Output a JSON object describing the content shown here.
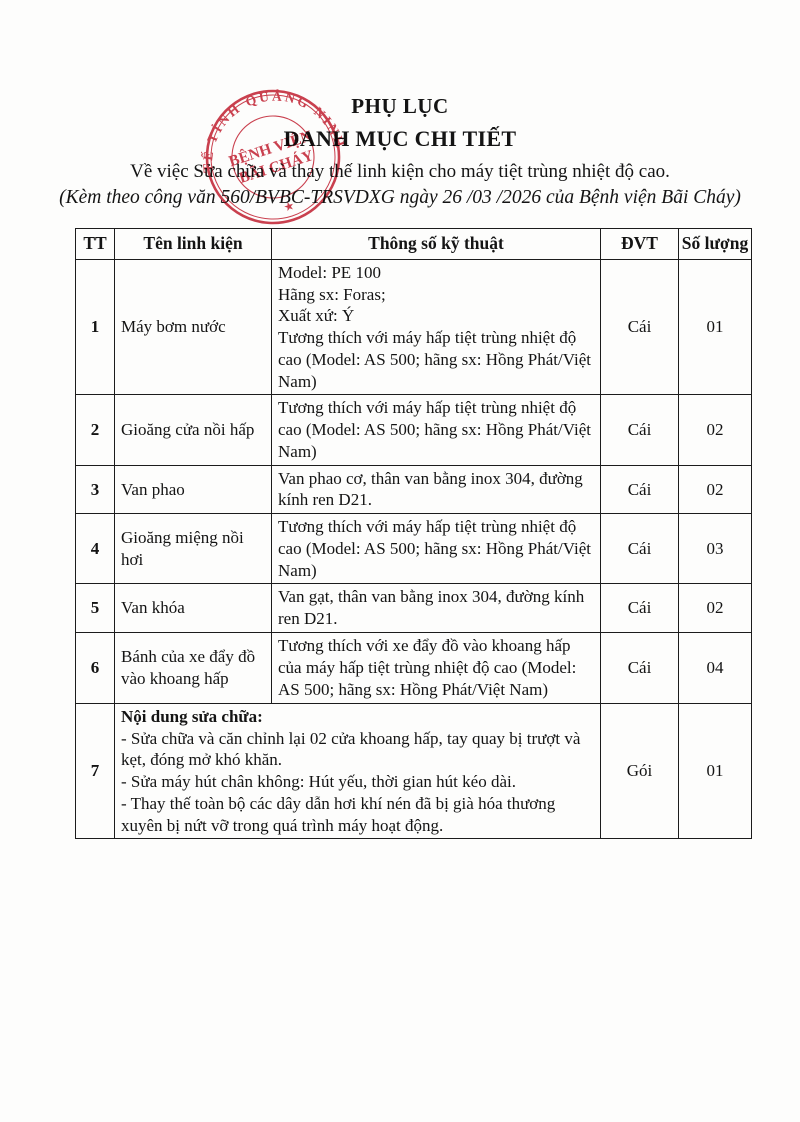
{
  "page": {
    "title1": "PHỤ LỤC",
    "title2": "DANH MỤC CHI TIẾT",
    "subtitle": "Về việc Sửa chữa và thay thế linh kiện cho máy tiệt trùng nhiệt độ cao.",
    "reference": "(Kèm theo công văn 560/BVBC-TRSVDXG ngày 26 /03 /2026 của Bệnh viện Bãi Cháy)"
  },
  "stamp": {
    "ring_text": "Y TẾ TỈNH QUẢNG NINH",
    "center_line1": "BỆNH VIỆN",
    "center_line2": "BÃI CHÁY",
    "star": "★",
    "color": "#c32032"
  },
  "table": {
    "headers": [
      "TT",
      "Tên linh kiện",
      "Thông số kỹ thuật",
      "ĐVT",
      "Số lượng"
    ],
    "rows": [
      {
        "tt": "1",
        "name": "Máy bơm nước",
        "spec_lines": [
          "Model: PE 100",
          "Hãng sx: Foras;",
          "Xuất xứ: Ý",
          "Tương thích với máy hấp tiệt trùng nhiệt độ cao (Model: AS 500; hãng sx: Hồng Phát/Việt Nam)"
        ],
        "unit": "Cái",
        "qty": "01"
      },
      {
        "tt": "2",
        "name": "Gioăng cửa nồi hấp",
        "spec_lines": [
          "Tương thích với máy hấp tiệt trùng nhiệt độ cao (Model: AS 500; hãng sx: Hồng Phát/Việt Nam)"
        ],
        "unit": "Cái",
        "qty": "02"
      },
      {
        "tt": "3",
        "name": "Van phao",
        "spec_lines": [
          "Van phao cơ, thân van bằng inox 304, đường kính ren D21."
        ],
        "unit": "Cái",
        "qty": "02"
      },
      {
        "tt": "4",
        "name": "Gioăng miệng nồi hơi",
        "spec_lines": [
          "Tương thích với máy hấp tiệt trùng nhiệt độ cao (Model: AS 500; hãng sx: Hồng Phát/Việt Nam)"
        ],
        "unit": "Cái",
        "qty": "03"
      },
      {
        "tt": "5",
        "name": "Van khóa",
        "spec_lines": [
          "Van gạt, thân van bằng inox 304, đường kính ren D21."
        ],
        "unit": "Cái",
        "qty": "02"
      },
      {
        "tt": "6",
        "name": "Bánh của xe đẩy đồ vào khoang hấp",
        "spec_lines": [
          "Tương thích với xe đẩy đồ vào khoang hấp của máy hấp tiệt trùng nhiệt độ cao (Model: AS 500; hãng sx: Hồng Phát/Việt Nam)"
        ],
        "unit": "Cái",
        "qty": "04"
      },
      {
        "tt": "7",
        "merged": true,
        "title": "Nội dung sửa chữa:",
        "spec_lines": [
          "- Sửa chữa và căn chỉnh lại 02 cửa khoang hấp, tay quay bị trượt và kẹt, đóng mở khó khăn.",
          "- Sửa máy hút chân không: Hút yếu, thời gian hút kéo dài.",
          "- Thay thế toàn bộ các dây dẫn hơi khí nén đã bị già hóa thương xuyên bị nứt vỡ trong quá trình máy hoạt động."
        ],
        "unit": "Gói",
        "qty": "01"
      }
    ]
  }
}
